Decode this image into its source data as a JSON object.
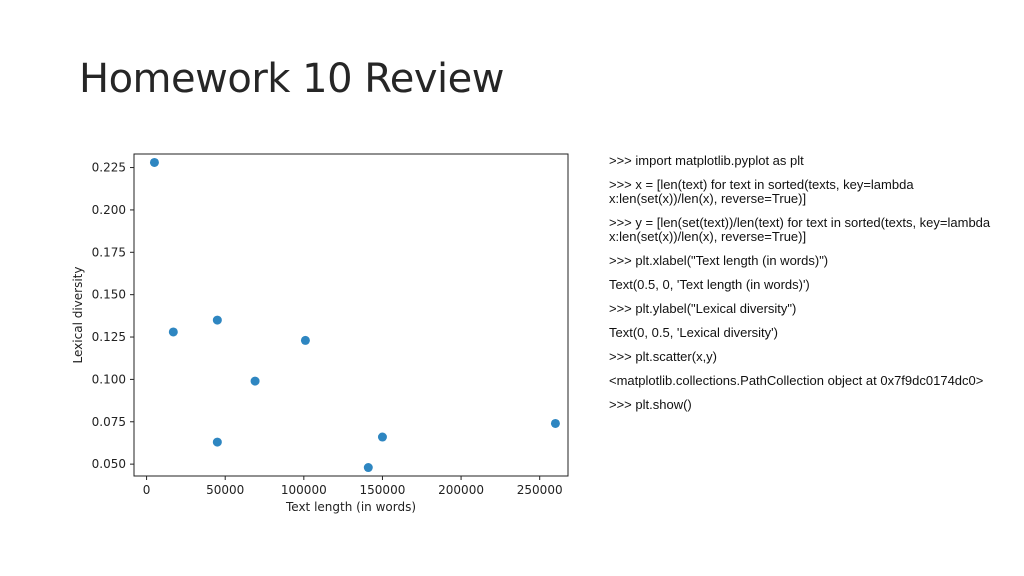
{
  "slide": {
    "title": "Homework 10 Review"
  },
  "code_lines": [
    ">>> import  matplotlib.pyplot as plt",
    ">>> x = [len(text) for text in sorted(texts, key=lambda x:len(set(x))/len(x), reverse=True)]",
    ">>> y = [len(set(text))/len(text) for text in sorted(texts, key=lambda x:len(set(x))/len(x), reverse=True)]",
    ">>> plt.xlabel(\"Text length (in words)\")",
    "Text(0.5, 0, 'Text length (in words)')",
    ">>> plt.ylabel(\"Lexical diversity\")",
    "Text(0, 0.5, 'Lexical diversity')",
    ">>> plt.scatter(x,y)",
    "<matplotlib.collections.PathCollection object at 0x7f9dc0174dc0>",
    ">>> plt.show()"
  ],
  "chart_data": {
    "type": "scatter",
    "xlabel": "Text length (in words)",
    "ylabel": "Lexical diversity",
    "xlim": [
      -8000,
      268000
    ],
    "ylim": [
      0.043,
      0.233
    ],
    "xticks": [
      0,
      50000,
      100000,
      150000,
      200000,
      250000
    ],
    "xtick_labels": [
      "0",
      "50000",
      "100000",
      "150000",
      "200000",
      "250000"
    ],
    "yticks": [
      0.05,
      0.075,
      0.1,
      0.125,
      0.15,
      0.175,
      0.2,
      0.225
    ],
    "ytick_labels": [
      "0.050",
      "0.075",
      "0.100",
      "0.125",
      "0.150",
      "0.175",
      "0.200",
      "0.225"
    ],
    "grid": false,
    "point_color": "#2e86c1",
    "points": [
      {
        "x": 5000,
        "y": 0.228
      },
      {
        "x": 17000,
        "y": 0.128
      },
      {
        "x": 45000,
        "y": 0.135
      },
      {
        "x": 45000,
        "y": 0.063
      },
      {
        "x": 69000,
        "y": 0.099
      },
      {
        "x": 101000,
        "y": 0.123
      },
      {
        "x": 141000,
        "y": 0.048
      },
      {
        "x": 150000,
        "y": 0.066
      },
      {
        "x": 260000,
        "y": 0.074
      }
    ]
  }
}
